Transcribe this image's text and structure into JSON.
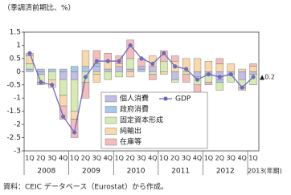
{
  "chart_data": {
    "type": "bar",
    "y_label": "（季調済前期比、%）",
    "categories": [
      "1Q",
      "2Q",
      "3Q",
      "4Q",
      "1Q",
      "2Q",
      "3Q",
      "4Q",
      "1Q",
      "2Q",
      "3Q",
      "4Q",
      "1Q",
      "2Q",
      "3Q",
      "4Q",
      "1Q",
      "2Q",
      "3Q",
      "4Q",
      "1Q"
    ],
    "years": [
      "2008",
      "2009",
      "2010",
      "2011",
      "2012",
      "2013(年期)"
    ],
    "series": [
      {
        "name": "個人消費",
        "color": "#c3bce6",
        "values": [
          0.0,
          -0.1,
          0.0,
          -0.3,
          -0.3,
          0.0,
          0.2,
          0.1,
          0.2,
          0.1,
          0.1,
          0.2,
          0.0,
          -0.3,
          0.0,
          -0.2,
          -0.1,
          -0.3,
          -0.1,
          -0.3,
          -0.1
        ]
      },
      {
        "name": "政府消費",
        "color": "#a9c6ec",
        "values": [
          0.1,
          0.1,
          0.1,
          0.1,
          0.2,
          0.2,
          0.1,
          0.0,
          0.0,
          0.0,
          0.1,
          0.0,
          0.0,
          0.0,
          0.0,
          0.0,
          0.0,
          -0.1,
          0.0,
          0.0,
          0.0
        ]
      },
      {
        "name": "固定資本形成",
        "color": "#d6eab4",
        "values": [
          0.2,
          -0.3,
          -0.3,
          -0.6,
          -1.2,
          -0.4,
          -0.1,
          -0.3,
          -0.2,
          0.4,
          0.0,
          -0.1,
          0.4,
          -0.1,
          -0.1,
          -0.3,
          -0.3,
          -0.3,
          -0.3,
          -0.3,
          -0.4
        ]
      },
      {
        "name": "純輸出",
        "color": "#f9d9ab",
        "values": [
          0.3,
          0.0,
          -0.3,
          -0.4,
          -0.3,
          0.6,
          -0.3,
          0.3,
          0.1,
          -0.2,
          0.0,
          0.4,
          -0.1,
          0.4,
          0.5,
          0.5,
          0.4,
          0.3,
          0.3,
          0.1,
          0.2
        ]
      },
      {
        "name": "在庫等",
        "color": "#f5bcbc",
        "values": [
          0.1,
          -0.1,
          0.0,
          -0.5,
          -0.7,
          -0.6,
          0.5,
          0.3,
          0.3,
          0.7,
          0.3,
          -0.2,
          0.4,
          0.2,
          -0.3,
          -0.3,
          -0.1,
          0.2,
          0.0,
          -0.1,
          0.1
        ]
      },
      {
        "name": "GDP",
        "type": "line",
        "color": "#6b6bbf",
        "values": [
          0.7,
          -0.4,
          -0.5,
          -1.7,
          -2.3,
          -0.2,
          0.4,
          0.4,
          0.4,
          1.0,
          0.5,
          0.3,
          0.7,
          0.2,
          0.1,
          -0.3,
          -0.1,
          -0.2,
          -0.1,
          -0.6,
          -0.2
        ],
        "value_labels": [
          null,
          null,
          null,
          null,
          null,
          null,
          null,
          null,
          null,
          null,
          null,
          null,
          null,
          null,
          null,
          null,
          null,
          null,
          null,
          null,
          "▲0.2"
        ]
      }
    ],
    "ylim": [
      -3,
      1.5
    ],
    "yticks": [
      1.5,
      1,
      0.5,
      0,
      -0.5,
      -1,
      -1.5,
      -2,
      -2.5,
      -3
    ],
    "grid": false,
    "note": "資料：CEIC データベース（Eurostat）から作成。"
  }
}
